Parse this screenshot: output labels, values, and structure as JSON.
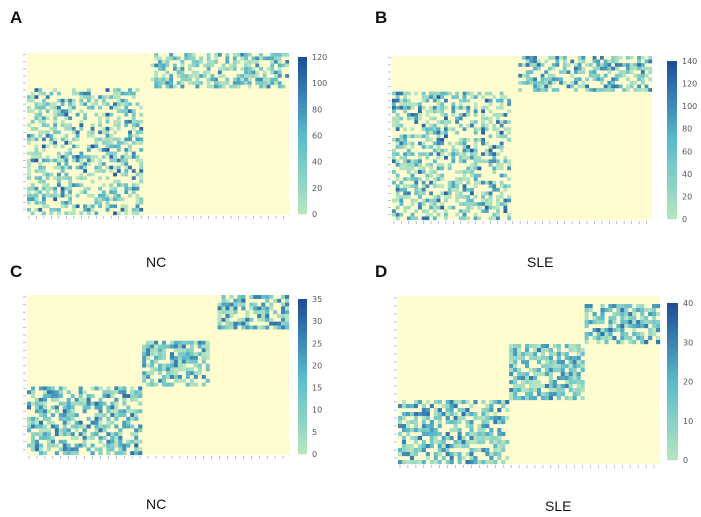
{
  "panels": [
    {
      "letter": "A",
      "label": "NC"
    },
    {
      "letter": "B",
      "label": "SLE"
    },
    {
      "letter": "C",
      "label": "NC"
    },
    {
      "letter": "D",
      "label": "SLE"
    }
  ],
  "colors": {
    "background": "#fffdd0",
    "low": "#b9e6bf",
    "mid": "#5bbccb",
    "high": "#1f4e9a"
  },
  "chart_data": [
    {
      "type": "heatmap",
      "panel": "A",
      "title": "",
      "xlabel": "NC",
      "gene_prefixes": [
        "TRBV",
        "TRAV"
      ],
      "block_structure": "TRB genes (rows top) pair with upper-right block; TRA genes pair with lower-left block",
      "colorbar": {
        "min": 0,
        "max": 120,
        "ticks": [
          0,
          20,
          40,
          60,
          80,
          100,
          120
        ]
      },
      "rows_approx": 46,
      "cols_approx": 70
    },
    {
      "type": "heatmap",
      "panel": "B",
      "title": "",
      "xlabel": "SLE",
      "gene_prefixes": [
        "TRBV",
        "TRAV"
      ],
      "block_structure": "TRB genes (rows top) pair with upper-right block; TRA genes pair with lower-left block",
      "colorbar": {
        "min": 0,
        "max": 140,
        "ticks": [
          0,
          20,
          40,
          60,
          80,
          100,
          120,
          140
        ]
      },
      "rows_approx": 46,
      "cols_approx": 70
    },
    {
      "type": "heatmap",
      "panel": "C",
      "title": "",
      "xlabel": "NC",
      "gene_prefixes": [
        "IGKV",
        "IGLV",
        "IGHV"
      ],
      "block_structure": "three diagonal blocks: lower-left, middle, upper-right",
      "colorbar": {
        "min": 0,
        "max": 35,
        "ticks": [
          0,
          5,
          10,
          15,
          20,
          25,
          30,
          35
        ]
      },
      "rows_approx": 42,
      "cols_approx": 66
    },
    {
      "type": "heatmap",
      "panel": "D",
      "title": "",
      "xlabel": "SLE",
      "gene_prefixes": [
        "IGKV",
        "IGLV",
        "IGHV"
      ],
      "block_structure": "three diagonal blocks: lower-left, middle, upper-right",
      "colorbar": {
        "min": 0,
        "max": 40,
        "ticks": [
          0,
          10,
          20,
          30,
          40
        ]
      },
      "rows_approx": 42,
      "cols_approx": 66
    }
  ]
}
